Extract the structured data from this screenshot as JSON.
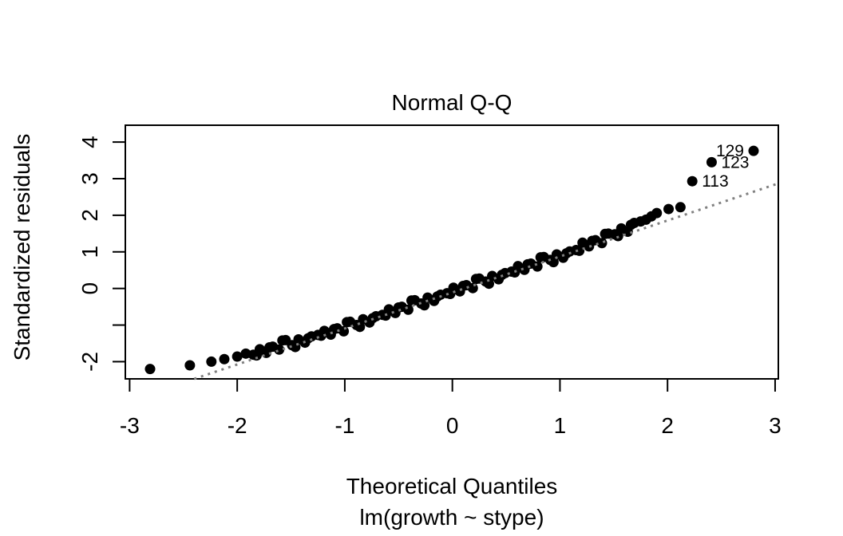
{
  "figure": {
    "background": "#ffffff",
    "foreground": "#000000"
  },
  "chart_data": {
    "type": "scatter",
    "variant": "normal-qq-plot",
    "title": "Normal Q-Q",
    "xlabel": "Theoretical Quantiles",
    "sub_caption": "lm(growth ~ stype)",
    "ylabel": "Standardized residuals",
    "xlim": [
      -3.04,
      3.03
    ],
    "ylim": [
      -2.47,
      4.46
    ],
    "x_ticks": [
      -3,
      -2,
      -1,
      0,
      1,
      2,
      3
    ],
    "x_tick_labels": [
      "-3",
      "-2",
      "-1",
      "0",
      "1",
      "2",
      "3"
    ],
    "y_ticks": [
      -2,
      -1,
      0,
      1,
      2,
      3,
      4
    ],
    "y_tick_labels": [
      "-2",
      "",
      "0",
      "1",
      "2",
      "3",
      "4"
    ],
    "grid": false,
    "legend": null,
    "point_color": "#000000",
    "point_radius_px": 6.5,
    "reference_line": {
      "x1": -2.4,
      "y1": -2.47,
      "x2": 3.03,
      "y2": 2.87,
      "style": "dotted",
      "color": "#808080"
    },
    "labeled_points": [
      {
        "label": "113",
        "x": 2.23,
        "y": 2.93,
        "label_side": "right"
      },
      {
        "label": "123",
        "x": 2.41,
        "y": 3.45,
        "label_side": "right"
      },
      {
        "label": "129",
        "x": 2.8,
        "y": 3.76,
        "label_side": "left"
      }
    ],
    "points": [
      [
        -2.81,
        -2.2
      ],
      [
        -2.44,
        -2.1
      ],
      [
        -2.24,
        -2.0
      ],
      [
        -2.12,
        -1.93
      ],
      [
        -2.0,
        -1.86
      ],
      [
        -1.92,
        -1.78
      ],
      [
        -1.85,
        -1.81
      ],
      [
        -1.79,
        -1.66
      ],
      [
        -1.73,
        -1.76
      ],
      [
        -1.67,
        -1.59
      ],
      [
        -1.61,
        -1.67
      ],
      [
        -1.55,
        -1.41
      ],
      [
        -1.49,
        -1.55
      ],
      [
        -1.43,
        -1.39
      ],
      [
        -1.37,
        -1.48
      ],
      [
        -1.31,
        -1.31
      ],
      [
        -1.25,
        -1.27
      ],
      [
        -1.19,
        -1.16
      ],
      [
        -1.13,
        -1.26
      ],
      [
        -1.07,
        -1.09
      ],
      [
        -1.01,
        -1.17
      ],
      [
        -0.95,
        -0.91
      ],
      [
        -0.89,
        -1.0
      ],
      [
        -0.83,
        -0.84
      ],
      [
        -0.77,
        -0.93
      ],
      [
        -0.71,
        -0.76
      ],
      [
        -0.65,
        -0.72
      ],
      [
        -0.59,
        -0.57
      ],
      [
        -0.53,
        -0.67
      ],
      [
        -0.47,
        -0.5
      ],
      [
        -0.41,
        -0.58
      ],
      [
        -0.35,
        -0.32
      ],
      [
        -0.29,
        -0.41
      ],
      [
        -0.23,
        -0.25
      ],
      [
        -0.17,
        -0.34
      ],
      [
        -0.11,
        -0.17
      ],
      [
        -0.05,
        -0.13
      ],
      [
        0.01,
        0.02
      ],
      [
        0.07,
        -0.08
      ],
      [
        0.13,
        0.09
      ],
      [
        0.19,
        0.01
      ],
      [
        0.25,
        0.27
      ],
      [
        0.31,
        0.19
      ],
      [
        0.37,
        0.34
      ],
      [
        0.43,
        0.25
      ],
      [
        0.49,
        0.42
      ],
      [
        0.55,
        0.46
      ],
      [
        0.61,
        0.61
      ],
      [
        0.67,
        0.51
      ],
      [
        0.73,
        0.68
      ],
      [
        0.79,
        0.6
      ],
      [
        0.85,
        0.86
      ],
      [
        0.91,
        0.78
      ],
      [
        0.97,
        0.93
      ],
      [
        1.03,
        0.84
      ],
      [
        1.09,
        1.01
      ],
      [
        1.15,
        1.05
      ],
      [
        1.21,
        1.25
      ],
      [
        1.27,
        1.15
      ],
      [
        1.33,
        1.32
      ],
      [
        1.39,
        1.24
      ],
      [
        1.45,
        1.5
      ],
      [
        1.51,
        1.48
      ],
      [
        1.57,
        1.64
      ],
      [
        1.63,
        1.55
      ],
      [
        1.69,
        1.79
      ],
      [
        1.75,
        1.83
      ],
      [
        -1.82,
        -1.83
      ],
      [
        -1.7,
        -1.61
      ],
      [
        -1.58,
        -1.42
      ],
      [
        -1.46,
        -1.6
      ],
      [
        -1.34,
        -1.36
      ],
      [
        -1.22,
        -1.29
      ],
      [
        -1.1,
        -1.11
      ],
      [
        -0.98,
        -0.92
      ],
      [
        -0.86,
        -1.05
      ],
      [
        -0.74,
        -0.81
      ],
      [
        -0.62,
        -0.74
      ],
      [
        -0.5,
        -0.52
      ],
      [
        -0.38,
        -0.33
      ],
      [
        -0.26,
        -0.46
      ],
      [
        -0.14,
        -0.22
      ],
      [
        -0.02,
        -0.15
      ],
      [
        0.1,
        0.07
      ],
      [
        0.22,
        0.26
      ],
      [
        0.34,
        0.13
      ],
      [
        0.46,
        0.37
      ],
      [
        0.58,
        0.44
      ],
      [
        0.7,
        0.66
      ],
      [
        0.82,
        0.85
      ],
      [
        0.94,
        0.72
      ],
      [
        1.06,
        0.96
      ],
      [
        1.18,
        1.03
      ],
      [
        1.3,
        1.3
      ],
      [
        1.42,
        1.49
      ],
      [
        1.54,
        1.43
      ],
      [
        1.66,
        1.74
      ],
      [
        1.8,
        1.88
      ],
      [
        1.85,
        1.97
      ],
      [
        1.9,
        2.06
      ],
      [
        2.01,
        2.17
      ],
      [
        2.12,
        2.22
      ]
    ]
  }
}
